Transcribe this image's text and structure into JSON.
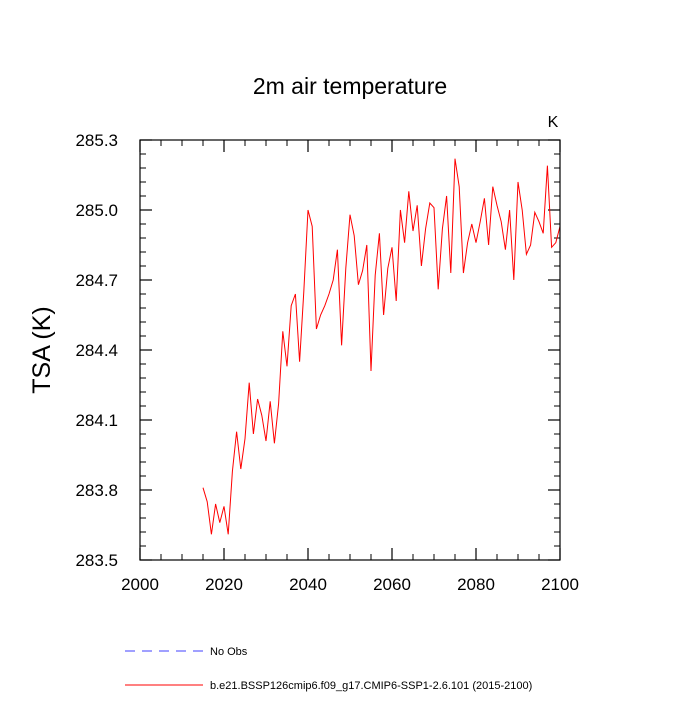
{
  "chart_data": {
    "type": "line",
    "title": "2m air temperature",
    "units_label": "K",
    "xlabel": "",
    "ylabel": "TSA  (K)",
    "xlim": [
      2000,
      2100
    ],
    "ylim": [
      283.5,
      285.3
    ],
    "xticks": [
      2000,
      2020,
      2040,
      2060,
      2080,
      2100
    ],
    "xtick_labels": [
      "2000",
      "2020",
      "2040",
      "2060",
      "2080",
      "2100"
    ],
    "yticks": [
      283.5,
      283.8,
      284.1,
      284.4,
      284.7,
      285.0,
      285.3
    ],
    "ytick_labels": [
      "283.5",
      "283.8",
      "284.1",
      "284.4",
      "284.7",
      "285.0",
      "285.3"
    ],
    "x_minor_step": 5,
    "y_minor_step": 0.06,
    "legend": [
      {
        "label": "No Obs",
        "style": "dashed",
        "color": "#4040ff"
      },
      {
        "label": "b.e21.BSSP126cmip6.f09_g17.CMIP6-SSP1-2.6.101 (2015-2100)",
        "style": "solid",
        "color": "#ff0000"
      }
    ],
    "series": [
      {
        "name": "b.e21.BSSP126cmip6.f09_g17.CMIP6-SSP1-2.6.101 (2015-2100)",
        "color": "#ff0000",
        "x": [
          2015,
          2016,
          2017,
          2018,
          2019,
          2020,
          2021,
          2022,
          2023,
          2024,
          2025,
          2026,
          2027,
          2028,
          2029,
          2030,
          2031,
          2032,
          2033,
          2034,
          2035,
          2036,
          2037,
          2038,
          2039,
          2040,
          2041,
          2042,
          2043,
          2044,
          2045,
          2046,
          2047,
          2048,
          2049,
          2050,
          2051,
          2052,
          2053,
          2054,
          2055,
          2056,
          2057,
          2058,
          2059,
          2060,
          2061,
          2062,
          2063,
          2064,
          2065,
          2066,
          2067,
          2068,
          2069,
          2070,
          2071,
          2072,
          2073,
          2074,
          2075,
          2076,
          2077,
          2078,
          2079,
          2080,
          2081,
          2082,
          2083,
          2084,
          2085,
          2086,
          2087,
          2088,
          2089,
          2090,
          2091,
          2092,
          2093,
          2094,
          2095,
          2096,
          2097,
          2098,
          2099,
          2100
        ],
        "values": [
          283.81,
          283.75,
          283.61,
          283.74,
          283.66,
          283.73,
          283.61,
          283.88,
          284.05,
          283.89,
          284.02,
          284.26,
          284.04,
          284.19,
          284.12,
          284.01,
          284.18,
          284.0,
          284.17,
          284.48,
          284.33,
          284.59,
          284.64,
          284.35,
          284.65,
          285.0,
          284.93,
          284.49,
          284.55,
          284.59,
          284.64,
          284.7,
          284.83,
          284.42,
          284.75,
          284.98,
          284.89,
          284.68,
          284.74,
          284.85,
          284.31,
          284.72,
          284.9,
          284.55,
          284.75,
          284.84,
          284.61,
          285.0,
          284.86,
          285.08,
          284.91,
          285.02,
          284.76,
          284.92,
          285.03,
          285.01,
          284.66,
          284.92,
          285.06,
          284.73,
          285.22,
          285.1,
          284.73,
          284.86,
          284.94,
          284.86,
          284.95,
          285.05,
          284.85,
          285.1,
          285.02,
          284.95,
          284.83,
          285.0,
          284.7,
          285.12,
          285.0,
          284.81,
          284.85,
          284.99,
          284.95,
          284.9,
          285.19,
          284.84,
          284.86,
          284.93
        ]
      }
    ]
  }
}
